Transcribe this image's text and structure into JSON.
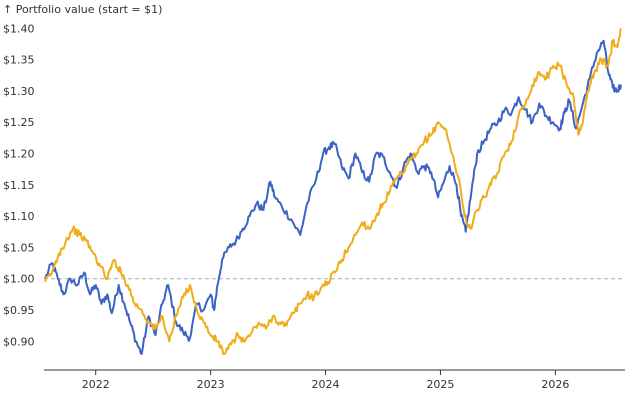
{
  "chart_data": {
    "type": "line",
    "ylabel": "↑ Portfolio value (start = $1)",
    "y_ticks": [
      {
        "value": 0.9,
        "label": "$0.90"
      },
      {
        "value": 0.95,
        "label": "$0.95"
      },
      {
        "value": 1.0,
        "label": "$1.00"
      },
      {
        "value": 1.05,
        "label": "$1.05"
      },
      {
        "value": 1.1,
        "label": "$1.10"
      },
      {
        "value": 1.15,
        "label": "$1.15"
      },
      {
        "value": 1.2,
        "label": "$1.20"
      },
      {
        "value": 1.25,
        "label": "$1.25"
      },
      {
        "value": 1.3,
        "label": "$1.30"
      },
      {
        "value": 1.35,
        "label": "$1.35"
      },
      {
        "value": 1.4,
        "label": "$1.40"
      }
    ],
    "x_ticks": [
      {
        "value": 2022,
        "label": "2022"
      },
      {
        "value": 2023,
        "label": "2023"
      },
      {
        "value": 2024,
        "label": "2024"
      },
      {
        "value": 2025,
        "label": "2025"
      },
      {
        "value": 2026,
        "label": "2026"
      }
    ],
    "xlim": [
      2021.55,
      2026.58
    ],
    "ylim": [
      0.875,
      1.41
    ],
    "reference_line": 1.0,
    "grid": false,
    "series": [
      {
        "color": "#3b63c4",
        "points": [
          [
            2021.56,
            1.0
          ],
          [
            2021.62,
            1.025
          ],
          [
            2021.67,
            1.0
          ],
          [
            2021.72,
            0.975
          ],
          [
            2021.78,
            1.0
          ],
          [
            2021.84,
            0.99
          ],
          [
            2021.9,
            1.01
          ],
          [
            2021.95,
            0.975
          ],
          [
            2022.0,
            0.99
          ],
          [
            2022.05,
            0.96
          ],
          [
            2022.1,
            0.975
          ],
          [
            2022.14,
            0.945
          ],
          [
            2022.2,
            0.99
          ],
          [
            2022.25,
            0.96
          ],
          [
            2022.3,
            0.93
          ],
          [
            2022.35,
            0.9
          ],
          [
            2022.4,
            0.88
          ],
          [
            2022.46,
            0.94
          ],
          [
            2022.52,
            0.91
          ],
          [
            2022.58,
            0.96
          ],
          [
            2022.63,
            0.99
          ],
          [
            2022.7,
            0.93
          ],
          [
            2022.76,
            0.915
          ],
          [
            2022.82,
            0.905
          ],
          [
            2022.88,
            0.96
          ],
          [
            2022.94,
            0.95
          ],
          [
            2023.0,
            0.975
          ],
          [
            2023.03,
            0.95
          ],
          [
            2023.06,
            0.99
          ],
          [
            2023.1,
            1.03
          ],
          [
            2023.16,
            1.05
          ],
          [
            2023.22,
            1.06
          ],
          [
            2023.28,
            1.08
          ],
          [
            2023.34,
            1.1
          ],
          [
            2023.4,
            1.12
          ],
          [
            2023.46,
            1.11
          ],
          [
            2023.52,
            1.155
          ],
          [
            2023.56,
            1.13
          ],
          [
            2023.62,
            1.115
          ],
          [
            2023.7,
            1.095
          ],
          [
            2023.78,
            1.07
          ],
          [
            2023.84,
            1.12
          ],
          [
            2023.92,
            1.16
          ],
          [
            2023.98,
            1.2
          ],
          [
            2024.03,
            1.21
          ],
          [
            2024.08,
            1.215
          ],
          [
            2024.14,
            1.18
          ],
          [
            2024.2,
            1.16
          ],
          [
            2024.26,
            1.2
          ],
          [
            2024.32,
            1.17
          ],
          [
            2024.38,
            1.155
          ],
          [
            2024.44,
            1.2
          ],
          [
            2024.5,
            1.195
          ],
          [
            2024.56,
            1.17
          ],
          [
            2024.62,
            1.145
          ],
          [
            2024.68,
            1.18
          ],
          [
            2024.74,
            1.2
          ],
          [
            2024.8,
            1.17
          ],
          [
            2024.86,
            1.18
          ],
          [
            2024.92,
            1.17
          ],
          [
            2024.98,
            1.13
          ],
          [
            2025.03,
            1.155
          ],
          [
            2025.08,
            1.18
          ],
          [
            2025.14,
            1.15
          ],
          [
            2025.18,
            1.1
          ],
          [
            2025.22,
            1.075
          ],
          [
            2025.27,
            1.14
          ],
          [
            2025.32,
            1.2
          ],
          [
            2025.38,
            1.22
          ],
          [
            2025.44,
            1.24
          ],
          [
            2025.5,
            1.25
          ],
          [
            2025.56,
            1.27
          ],
          [
            2025.62,
            1.265
          ],
          [
            2025.68,
            1.29
          ],
          [
            2025.74,
            1.27
          ],
          [
            2025.8,
            1.25
          ],
          [
            2025.86,
            1.28
          ],
          [
            2025.92,
            1.26
          ],
          [
            2025.98,
            1.25
          ],
          [
            2026.04,
            1.24
          ],
          [
            2026.08,
            1.265
          ],
          [
            2026.12,
            1.285
          ],
          [
            2026.18,
            1.24
          ],
          [
            2026.24,
            1.28
          ],
          [
            2026.3,
            1.32
          ],
          [
            2026.36,
            1.36
          ],
          [
            2026.42,
            1.38
          ],
          [
            2026.46,
            1.33
          ],
          [
            2026.5,
            1.305
          ],
          [
            2026.54,
            1.3
          ],
          [
            2026.57,
            1.31
          ]
        ]
      },
      {
        "color": "#f0ad1b",
        "points": [
          [
            2021.56,
            0.995
          ],
          [
            2021.62,
            1.01
          ],
          [
            2021.68,
            1.04
          ],
          [
            2021.74,
            1.06
          ],
          [
            2021.8,
            1.08
          ],
          [
            2021.86,
            1.07
          ],
          [
            2021.92,
            1.06
          ],
          [
            2021.98,
            1.04
          ],
          [
            2022.04,
            1.02
          ],
          [
            2022.1,
            1.0
          ],
          [
            2022.16,
            1.03
          ],
          [
            2022.22,
            1.01
          ],
          [
            2022.28,
            0.99
          ],
          [
            2022.34,
            0.96
          ],
          [
            2022.4,
            0.95
          ],
          [
            2022.46,
            0.93
          ],
          [
            2022.52,
            0.92
          ],
          [
            2022.58,
            0.94
          ],
          [
            2022.64,
            0.9
          ],
          [
            2022.7,
            0.94
          ],
          [
            2022.76,
            0.97
          ],
          [
            2022.82,
            0.99
          ],
          [
            2022.88,
            0.95
          ],
          [
            2022.94,
            0.93
          ],
          [
            2023.0,
            0.91
          ],
          [
            2023.06,
            0.9
          ],
          [
            2023.12,
            0.88
          ],
          [
            2023.18,
            0.895
          ],
          [
            2023.24,
            0.91
          ],
          [
            2023.3,
            0.9
          ],
          [
            2023.36,
            0.915
          ],
          [
            2023.42,
            0.93
          ],
          [
            2023.48,
            0.92
          ],
          [
            2023.54,
            0.94
          ],
          [
            2023.6,
            0.93
          ],
          [
            2023.66,
            0.925
          ],
          [
            2023.72,
            0.945
          ],
          [
            2023.78,
            0.96
          ],
          [
            2023.84,
            0.975
          ],
          [
            2023.9,
            0.97
          ],
          [
            2023.96,
            0.985
          ],
          [
            2024.02,
            0.995
          ],
          [
            2024.08,
            1.01
          ],
          [
            2024.14,
            1.03
          ],
          [
            2024.2,
            1.05
          ],
          [
            2024.26,
            1.07
          ],
          [
            2024.32,
            1.09
          ],
          [
            2024.38,
            1.08
          ],
          [
            2024.44,
            1.1
          ],
          [
            2024.5,
            1.12
          ],
          [
            2024.56,
            1.14
          ],
          [
            2024.62,
            1.16
          ],
          [
            2024.68,
            1.17
          ],
          [
            2024.74,
            1.19
          ],
          [
            2024.8,
            1.2
          ],
          [
            2024.86,
            1.22
          ],
          [
            2024.92,
            1.23
          ],
          [
            2024.98,
            1.25
          ],
          [
            2025.04,
            1.24
          ],
          [
            2025.1,
            1.2
          ],
          [
            2025.16,
            1.16
          ],
          [
            2025.21,
            1.1
          ],
          [
            2025.26,
            1.08
          ],
          [
            2025.32,
            1.11
          ],
          [
            2025.38,
            1.13
          ],
          [
            2025.44,
            1.15
          ],
          [
            2025.5,
            1.17
          ],
          [
            2025.56,
            1.2
          ],
          [
            2025.62,
            1.22
          ],
          [
            2025.68,
            1.26
          ],
          [
            2025.74,
            1.28
          ],
          [
            2025.8,
            1.31
          ],
          [
            2025.86,
            1.33
          ],
          [
            2025.92,
            1.32
          ],
          [
            2025.98,
            1.34
          ],
          [
            2026.04,
            1.34
          ],
          [
            2026.1,
            1.31
          ],
          [
            2026.16,
            1.29
          ],
          [
            2026.2,
            1.23
          ],
          [
            2026.24,
            1.25
          ],
          [
            2026.28,
            1.3
          ],
          [
            2026.34,
            1.33
          ],
          [
            2026.4,
            1.35
          ],
          [
            2026.46,
            1.34
          ],
          [
            2026.5,
            1.38
          ],
          [
            2026.54,
            1.37
          ],
          [
            2026.57,
            1.4
          ]
        ]
      }
    ]
  }
}
